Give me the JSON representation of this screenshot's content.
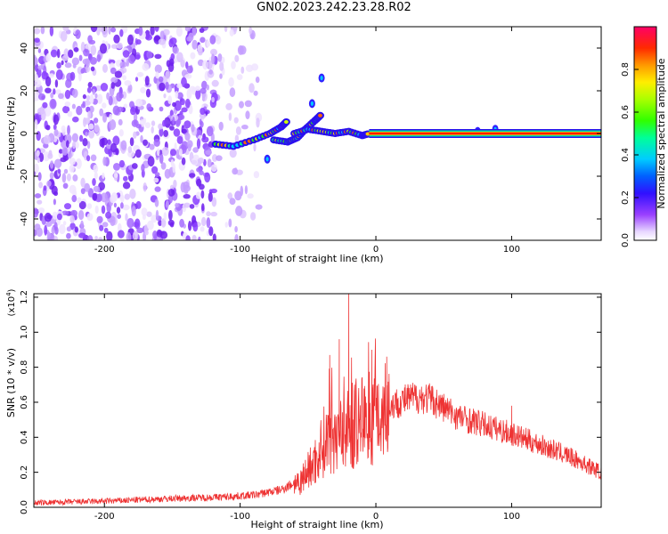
{
  "title": "GN02.2023.242.23.28.R02",
  "chart_data": [
    {
      "type": "heatmap",
      "xlabel": "Height of straight line (km)",
      "ylabel": "Frequency (Hz)",
      "xlim": [
        -252,
        166
      ],
      "ylim": [
        -50,
        50
      ],
      "xticks": [
        -200,
        -100,
        0,
        100
      ],
      "yticks": [
        -40,
        -20,
        0,
        20,
        40
      ],
      "colorbar": {
        "label": "Normalized spectral amplitude",
        "range": [
          0,
          1
        ],
        "ticks": [
          "0.0",
          "0.2",
          "0.4",
          "0.6",
          "0.8"
        ],
        "tick_values": [
          0.0,
          0.2,
          0.4,
          0.6,
          0.8
        ]
      },
      "features": {
        "noise_region_x": [
          -252,
          -85
        ],
        "dense_noise_until_x": -118,
        "signal_start_x": -118,
        "signal_stable_from_x": -5,
        "signal_stable_freq": 0,
        "branches": [
          {
            "x": [
              -118,
              -105,
              -90,
              -78,
              -70,
              -65
            ],
            "y": [
              -5,
              -6,
              -3,
              0,
              3,
              6
            ]
          },
          {
            "x": [
              -75,
              -65,
              -58,
              -52,
              -45,
              -40
            ],
            "y": [
              -3,
              -4,
              -2,
              2,
              6,
              9
            ]
          },
          {
            "x": [
              -60,
              -50,
              -40,
              -30,
              -20,
              -10,
              -5
            ],
            "y": [
              0,
              2,
              1,
              0,
              1,
              -1,
              0
            ]
          }
        ],
        "spots": [
          {
            "x": -80,
            "y": -12
          },
          {
            "x": -47,
            "y": 14
          },
          {
            "x": -40,
            "y": 26
          },
          {
            "x": 75,
            "y": 1
          },
          {
            "x": 88,
            "y": 2
          }
        ]
      }
    },
    {
      "type": "line",
      "xlabel": "Height of straight line (km)",
      "ylabel": "SNR (10 * v/v)",
      "y_multiplier": "(x10",
      "y_multiplier_exp": "4",
      "y_multiplier_close": ")",
      "xlim": [
        -252,
        166
      ],
      "ylim": [
        0,
        1.22
      ],
      "xticks": [
        -200,
        -100,
        0,
        100
      ],
      "yticks": [
        "0.0",
        "0.2",
        "0.4",
        "0.6",
        "0.8",
        "1.0",
        "1.2"
      ],
      "ytick_values": [
        0.0,
        0.2,
        0.4,
        0.6,
        0.8,
        1.0,
        1.2
      ],
      "color": "#ee3333",
      "envelope": {
        "x": [
          -252,
          -200,
          -150,
          -110,
          -90,
          -70,
          -55,
          -45,
          -38,
          -30,
          -20,
          -10,
          0,
          10,
          20,
          30,
          40,
          60,
          80,
          100,
          120,
          140,
          166
        ],
        "y": [
          0.025,
          0.035,
          0.05,
          0.06,
          0.07,
          0.1,
          0.16,
          0.26,
          0.38,
          0.42,
          0.45,
          0.5,
          0.53,
          0.58,
          0.61,
          0.63,
          0.62,
          0.52,
          0.47,
          0.42,
          0.36,
          0.3,
          0.2
        ]
      },
      "peaks": [
        {
          "x": -20,
          "y": 1.22
        },
        {
          "x": -34,
          "y": 0.87
        },
        {
          "x": -27,
          "y": 0.96
        },
        {
          "x": -3,
          "y": 0.9
        },
        {
          "x": 8,
          "y": 0.86
        },
        {
          "x": 100,
          "y": 0.58
        }
      ]
    }
  ]
}
